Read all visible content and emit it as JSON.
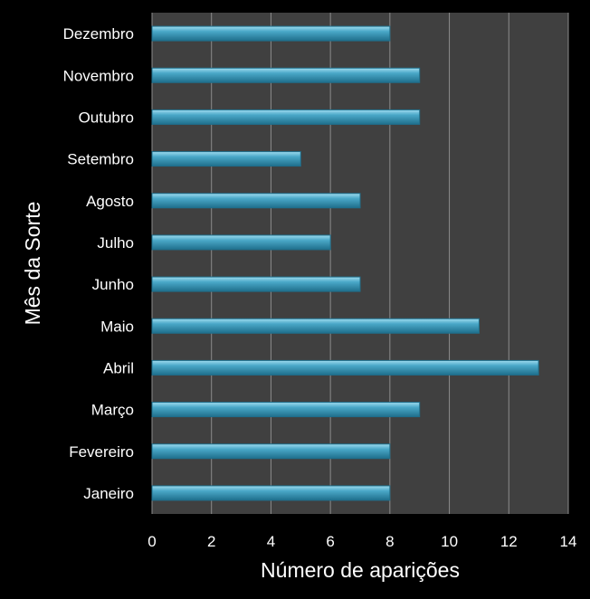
{
  "chart_data": {
    "type": "bar",
    "orientation": "horizontal",
    "categories": [
      "Janeiro",
      "Fevereiro",
      "Março",
      "Abril",
      "Maio",
      "Junho",
      "Julho",
      "Agosto",
      "Setembro",
      "Outubro",
      "Novembro",
      "Dezembro"
    ],
    "values": [
      8,
      8,
      9,
      13,
      11,
      7,
      6,
      7,
      5,
      9,
      9,
      8
    ],
    "title": "",
    "xlabel": "Número de aparições",
    "ylabel": "Mês da Sorte",
    "xlim": [
      0,
      14
    ],
    "xticks": [
      0,
      2,
      4,
      6,
      8,
      10,
      12,
      14
    ],
    "grid": "vertical",
    "legend": "none",
    "colors": {
      "background": "#000000",
      "plot_area": "#404040",
      "bar": "#4aa8c8",
      "bar_light": "#9fdcef",
      "bar_dark": "#1f6f8c",
      "gridline": "#8c8c8c",
      "text": "#ffffff"
    }
  }
}
